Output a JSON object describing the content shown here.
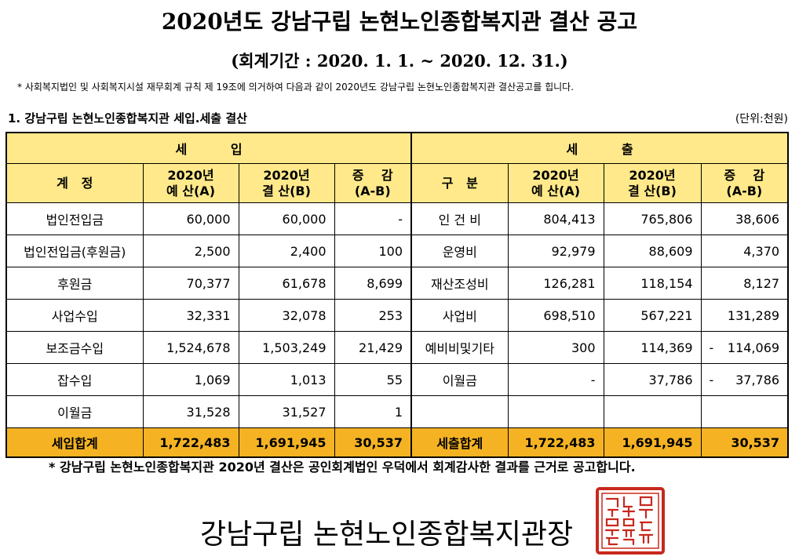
{
  "title": "2020년도 강남구립 논현노인종합복지관 결산 공고",
  "period": "(회계기간 : 2020. 1. 1. ~ 2020. 12. 31.)",
  "note": "* 사회복지법인 및 사회복지시설 재무회계 규칙 제 19조에 의거하여 다음과 같이 2020년도 강남구립 논현노인종합복지관 결산공고를 힙니다.",
  "section_title": "1. 강남구립 논현노인종합복지관 세입.세출 결산",
  "unit": "(단위:천원)",
  "table": {
    "income_header": "세          입",
    "expense_header": "세          출",
    "col_account": "계   정",
    "col_category": "구   분",
    "col_budget": [
      "2020년",
      "예 산(A)"
    ],
    "col_settled": [
      "2020년",
      "결 산(B)"
    ],
    "col_diff": [
      "증    감",
      "(A-B)"
    ],
    "rows": [
      {
        "in_name": "법인전입금",
        "in_a": "60,000",
        "in_b": "60,000",
        "in_d": "-",
        "ex_name": "인 건 비",
        "ex_a": "804,413",
        "ex_b": "765,806",
        "ex_d": "38,606"
      },
      {
        "in_name": "법인전입금(후원금)",
        "in_a": "2,500",
        "in_b": "2,400",
        "in_d": "100",
        "ex_name": "운영비",
        "ex_a": "92,979",
        "ex_b": "88,609",
        "ex_d": "4,370"
      },
      {
        "in_name": "후원금",
        "in_a": "70,377",
        "in_b": "61,678",
        "in_d": "8,699",
        "ex_name": "재산조성비",
        "ex_a": "126,281",
        "ex_b": "118,154",
        "ex_d": "8,127"
      },
      {
        "in_name": "사업수입",
        "in_a": "32,331",
        "in_b": "32,078",
        "in_d": "253",
        "ex_name": "사업비",
        "ex_a": "698,510",
        "ex_b": "567,221",
        "ex_d": "131,289"
      },
      {
        "in_name": "보조금수입",
        "in_a": "1,524,678",
        "in_b": "1,503,249",
        "in_d": "21,429",
        "ex_name": "예비비및기타",
        "ex_a": "300",
        "ex_b": "114,369",
        "ex_d_sign": "-",
        "ex_d": "114,069"
      },
      {
        "in_name": "잡수입",
        "in_a": "1,069",
        "in_b": "1,013",
        "in_d": "55",
        "ex_name": "이월금",
        "ex_a": "-",
        "ex_b": "37,786",
        "ex_d_sign": "-",
        "ex_d": "37,786"
      },
      {
        "in_name": "이월금",
        "in_a": "31,528",
        "in_b": "31,527",
        "in_d": "1",
        "ex_name": "",
        "ex_a": "",
        "ex_b": "",
        "ex_d": ""
      }
    ],
    "total": {
      "in_name": "세입합계",
      "in_a": "1,722,483",
      "in_b": "1,691,945",
      "in_d": "30,537",
      "ex_name": "세출합계",
      "ex_a": "1,722,483",
      "ex_b": "1,691,945",
      "ex_d": "30,537"
    }
  },
  "footnote": "* 강남구립 논현노인종합복지관 2020년 결산은 공인회계법인 우덕에서 회계감사한 결과를 근거로 공고합니다.",
  "organization": "강남구립 논현노인종합복지관장",
  "seal_text": "강남구립논현노인종합복지관장인",
  "colors": {
    "header_bg": "#ffe98a",
    "total_bg": "#f5b323",
    "seal": "#c8281e"
  }
}
